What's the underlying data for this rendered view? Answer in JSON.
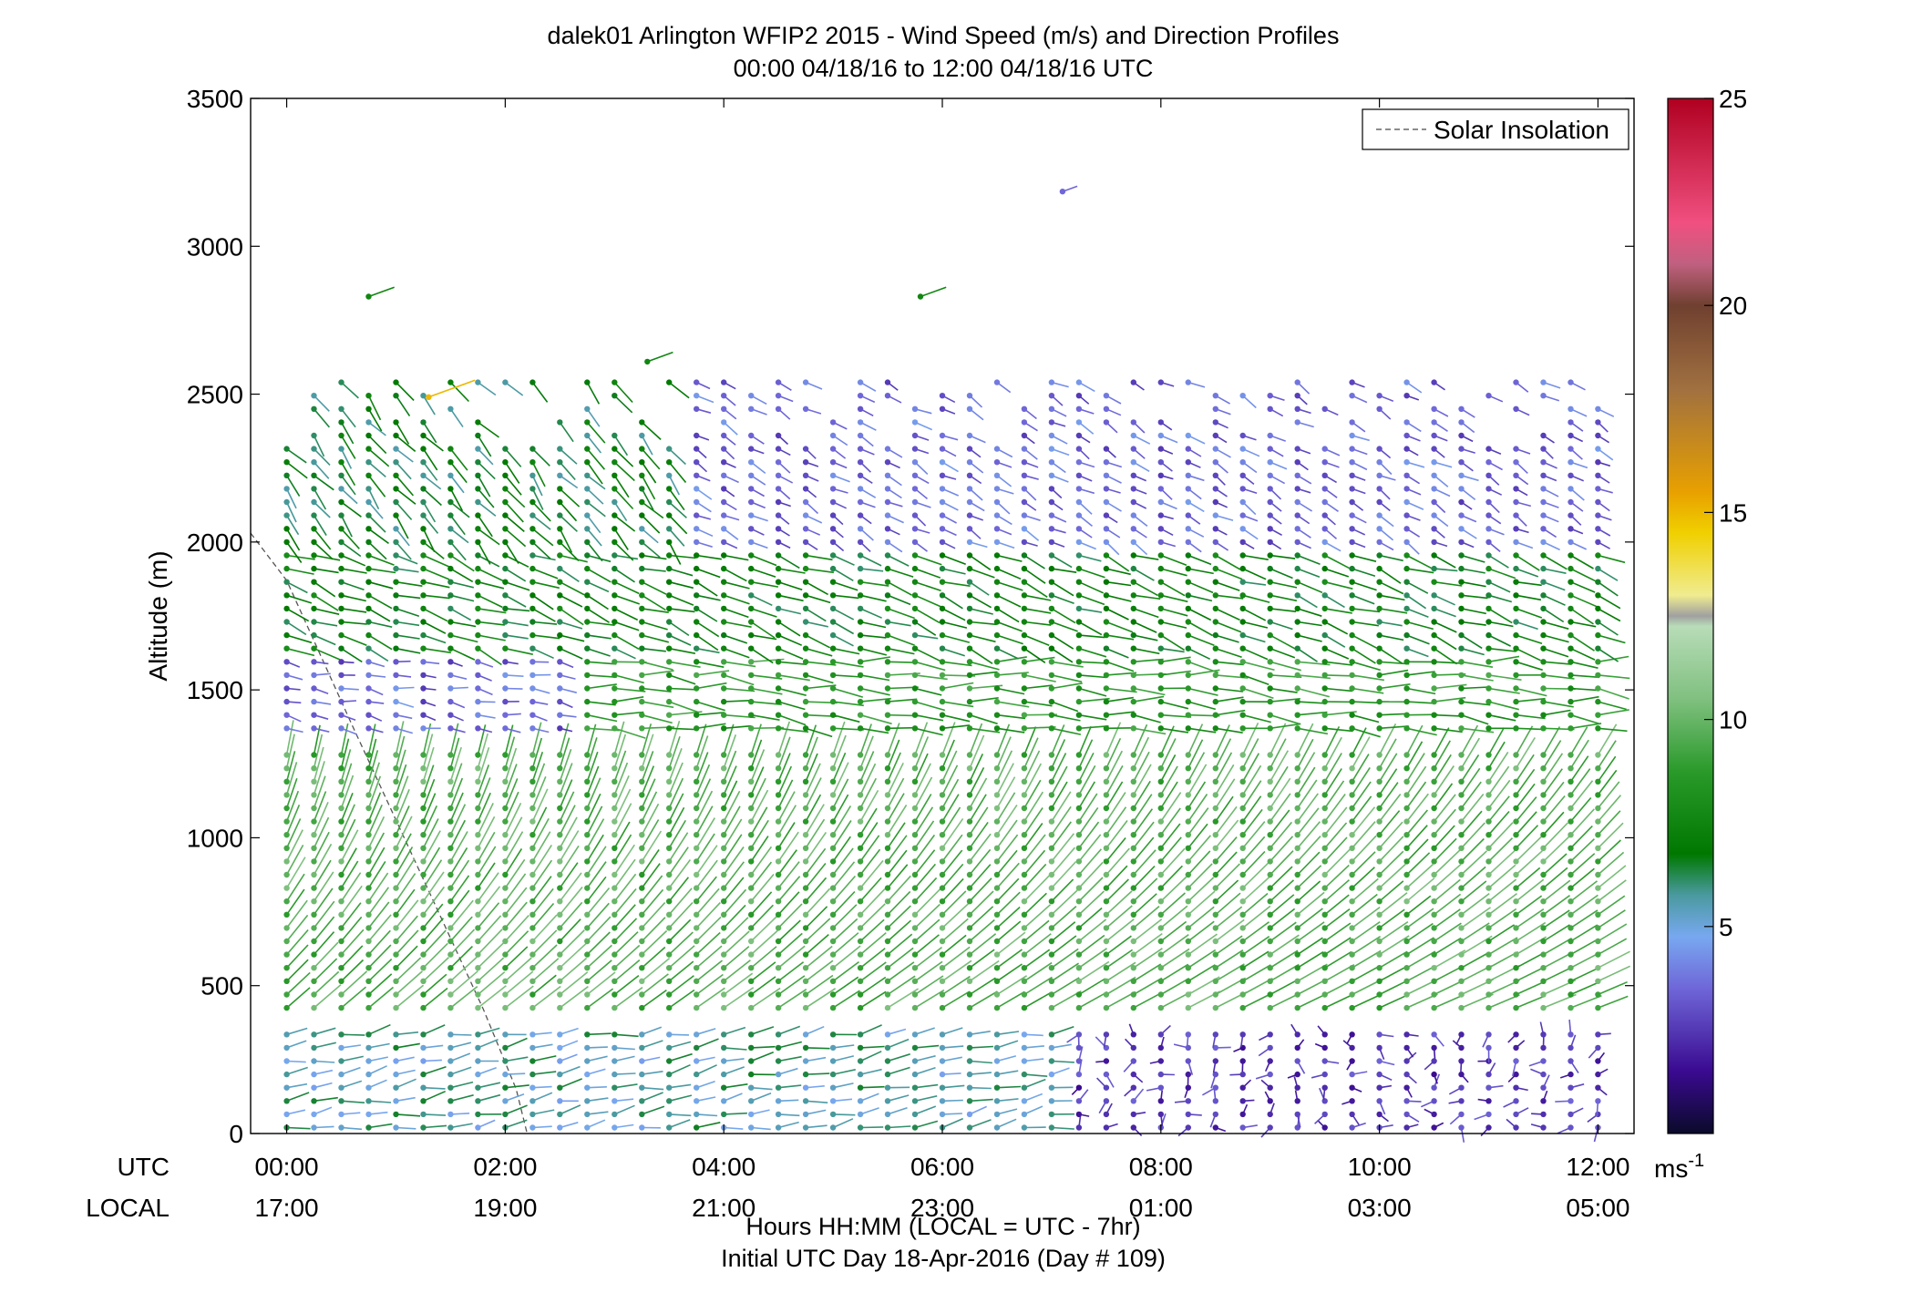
{
  "chart_data": {
    "type": "wind-barb-profile",
    "title": "dalek01 Arlington WFIP2 2015 - Wind Speed (m/s) and Direction Profiles",
    "subtitle": "00:00 04/18/16 to 12:00 04/18/16  UTC",
    "ylabel": "Altitude (m)",
    "ylim": [
      0,
      3500
    ],
    "yticks": [
      "0",
      "500",
      "1000",
      "1500",
      "2000",
      "2500",
      "3000",
      "3500"
    ],
    "xlim_hours": [
      -0.33,
      12.33
    ],
    "x_row_labels": {
      "utc": "UTC",
      "local": "LOCAL"
    },
    "xticks_utc": [
      "00:00",
      "02:00",
      "04:00",
      "06:00",
      "08:00",
      "10:00",
      "12:00"
    ],
    "xticks_local": [
      "17:00",
      "19:00",
      "21:00",
      "23:00",
      "01:00",
      "03:00",
      "05:00"
    ],
    "xlabel": "Hours HH:MM  (LOCAL = UTC - 7hr)",
    "footer": "Initial UTC Day 18-Apr-2016 (Day # 109)",
    "legend": {
      "label": "Solar Insolation",
      "placement": "top-right",
      "style": "dashed gray"
    },
    "colorbar": {
      "min": 0,
      "max": 25,
      "ticks": [
        "5",
        "10",
        "15",
        "20",
        "25"
      ],
      "unit_label": "ms",
      "unit_exponent": "-1"
    },
    "solar_insolation_line": [
      [
        -0.33,
        2030
      ],
      [
        0.0,
        1870
      ],
      [
        0.6,
        1380
      ],
      [
        1.2,
        900
      ],
      [
        1.8,
        420
      ],
      [
        2.1,
        150
      ],
      [
        2.2,
        0
      ]
    ],
    "profile_times_hours": [
      0.0,
      0.25,
      0.5,
      0.75,
      1.0,
      1.25,
      1.5,
      1.75,
      2.0,
      2.25,
      2.5,
      2.75,
      3.0,
      3.25,
      3.5,
      3.75,
      4.0,
      4.25,
      4.5,
      4.75,
      5.0,
      5.25,
      5.5,
      5.75,
      6.0,
      6.25,
      6.5,
      6.75,
      7.0,
      7.25,
      7.5,
      7.75,
      8.0,
      8.25,
      8.5,
      8.75,
      9.0,
      9.25,
      9.5,
      9.75,
      10.0,
      10.25,
      10.5,
      10.75,
      11.0,
      11.25,
      11.5,
      11.75,
      12.0
    ],
    "layers": [
      {
        "name": "surface-layer-early",
        "z_range_m": [
          20,
          380
        ],
        "t_range_h": [
          0,
          7.0
        ],
        "speed_ms": 5.5,
        "direction_deg": 260
      },
      {
        "name": "surface-layer-late",
        "z_range_m": [
          20,
          380
        ],
        "t_range_h": [
          7.0,
          12.0
        ],
        "speed_ms": 2.5,
        "direction_deg": "variable"
      },
      {
        "name": "lower-jet",
        "z_range_m": [
          400,
          1300
        ],
        "t_range_h": [
          0,
          12.0
        ],
        "speed_ms": 9.5,
        "direction_deg": 230
      },
      {
        "name": "mid-layer",
        "z_range_m": [
          1350,
          1600
        ],
        "t_range_h": [
          0,
          2.5
        ],
        "speed_ms": 3.5,
        "direction_deg": 280
      },
      {
        "name": "mid-layer",
        "z_range_m": [
          1350,
          1600
        ],
        "t_range_h": [
          2.5,
          12.0
        ],
        "speed_ms": 8.5,
        "direction_deg": 275
      },
      {
        "name": "upper-layer",
        "z_range_m": [
          1600,
          2000
        ],
        "t_range_h": [
          0,
          12.0
        ],
        "speed_ms": 7.0,
        "direction_deg": 290
      },
      {
        "name": "top-layer",
        "z_range_m": [
          2000,
          2550
        ],
        "t_range_h": [
          0,
          3.5
        ],
        "speed_ms": 6.5,
        "direction_deg": 320
      },
      {
        "name": "top-layer",
        "z_range_m": [
          2000,
          2550
        ],
        "t_range_h": [
          3.5,
          12.0
        ],
        "speed_ms": 3.5,
        "direction_deg": 300
      }
    ],
    "isolated_points": [
      {
        "time_h": 0.75,
        "z_m": 2830,
        "speed_ms": 7.5
      },
      {
        "time_h": 5.8,
        "z_m": 2830,
        "speed_ms": 7.5
      },
      {
        "time_h": 7.1,
        "z_m": 3185,
        "speed_ms": 3.5
      },
      {
        "time_h": 3.3,
        "z_m": 2610,
        "speed_ms": 7.5
      },
      {
        "time_h": 1.3,
        "z_m": 2490,
        "speed_ms": 15.0
      }
    ]
  }
}
